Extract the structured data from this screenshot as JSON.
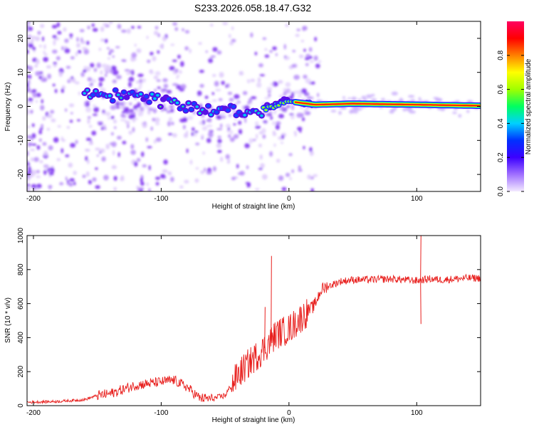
{
  "title": "S233.2026.058.18.47.G32",
  "colors": {
    "snr_line": "#e8201e",
    "frame": "#000000",
    "scatter_purple": "#6a14e8",
    "ridge": "#ff1c00"
  },
  "chart_data": [
    {
      "type": "heatmap",
      "title": "S233.2026.058.18.47.G32",
      "xlabel": "Height of straight line (km)",
      "ylabel": "Frequency (Hz)",
      "xlim": [
        -205,
        150
      ],
      "ylim": [
        -25,
        25
      ],
      "xticks": [
        -200,
        -100,
        0,
        100
      ],
      "yticks": [
        -20,
        -10,
        0,
        10,
        20
      ],
      "grid": false,
      "colorbar": {
        "label": "Normalized spectral amplitude",
        "range": [
          0,
          1
        ],
        "ticks": [
          "0.0",
          "0.2",
          "0.4",
          "0.6",
          "0.8"
        ],
        "colormap": [
          "#f3eaff",
          "#a070ff",
          "#3c00ff",
          "#0030ff",
          "#00d0ff",
          "#00ff60",
          "#a0ff00",
          "#ffff00",
          "#ff8000",
          "#ff0000",
          "#ff0060"
        ]
      },
      "ridge": {
        "description_x": [
          -160,
          -140,
          -120,
          -100,
          -80,
          -60,
          -40,
          -20,
          0,
          20,
          50,
          100,
          150
        ],
        "frequency_hz": [
          4,
          3,
          3.5,
          2,
          0,
          -2,
          -2,
          -1,
          1.5,
          0.5,
          0.8,
          0.5,
          0.2
        ]
      }
    },
    {
      "type": "line",
      "xlabel": "Height of straight line (km)",
      "ylabel": "SNR (10 * v/v)",
      "xlim": [
        -205,
        150
      ],
      "ylim": [
        0,
        1000
      ],
      "xticks": [
        -200,
        -100,
        0,
        100
      ],
      "yticks": [
        0,
        200,
        400,
        600,
        800,
        1000
      ],
      "grid": false,
      "series": [
        {
          "name": "SNR",
          "x": [
            -205,
            -180,
            -160,
            -150,
            -140,
            -120,
            -100,
            -90,
            -80,
            -70,
            -60,
            -50,
            -40,
            -30,
            -20,
            -10,
            0,
            10,
            20,
            25,
            30,
            40,
            50,
            60,
            80,
            90,
            100,
            110,
            120,
            140,
            150
          ],
          "y": [
            20,
            25,
            35,
            60,
            70,
            120,
            140,
            150,
            110,
            45,
            40,
            60,
            180,
            260,
            330,
            420,
            450,
            520,
            590,
            680,
            700,
            730,
            740,
            740,
            745,
            740,
            735,
            745,
            740,
            750,
            750
          ],
          "spikes": [
            {
              "x": -14,
              "y": 880
            },
            {
              "x": -19,
              "y": 580
            },
            {
              "x": 103,
              "y": 1000
            },
            {
              "x": 103,
              "y": 480
            }
          ]
        }
      ]
    }
  ]
}
